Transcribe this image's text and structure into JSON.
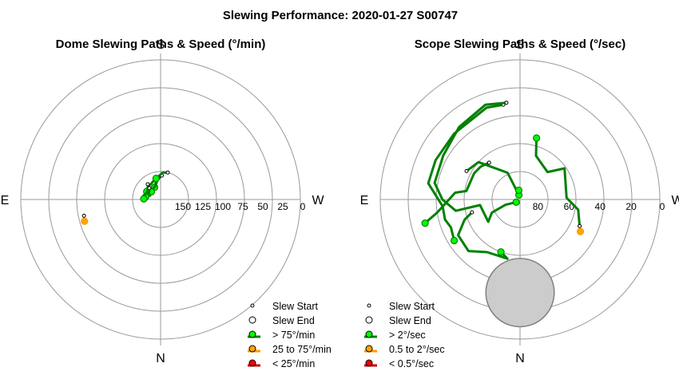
{
  "title": "Slewing Performance: 2020-01-27 S00747",
  "colors": {
    "fast": "#008000",
    "fast_marker": "#00ff00",
    "medium": "#ff9900",
    "medium_marker": "#ffa500",
    "slow": "#cc0000",
    "slow_marker": "#ff0000",
    "grid": "#999999",
    "zenith_fill": "#cccccc",
    "zenith_edge": "#808080"
  },
  "chart_data": [
    {
      "type": "polar",
      "title": "Dome Slewing Paths & Speed (°/min)",
      "direction_labels": {
        "top": "S",
        "bottom": "N",
        "left": "E",
        "right": "W"
      },
      "radial_range": [
        0,
        175
      ],
      "radial_ticks": [
        150,
        125,
        100,
        75,
        50,
        25,
        0
      ],
      "radial_tick_labels": [
        "150",
        "125",
        "100",
        "75",
        "50",
        "25",
        "0"
      ],
      "grid": true,
      "legend_position": "bottom-right",
      "legend": [
        {
          "label": "Slew Start",
          "kind": "start"
        },
        {
          "label": "Slew End",
          "kind": "end"
        },
        {
          "label": "> 75°/min",
          "kind": "fast"
        },
        {
          "label": "25 to 75°/min",
          "kind": "medium"
        },
        {
          "label": "< 25°/min",
          "kind": "slow"
        }
      ],
      "slews": [
        {
          "class": "fast",
          "path": [
            [
              3,
              145
            ],
            [
              -12,
              150
            ],
            [
              -26,
              158
            ]
          ]
        },
        {
          "class": "fast",
          "path": [
            [
              -6,
              148
            ],
            [
              -22,
              157
            ],
            [
              -42,
              159
            ],
            [
              -50,
              160
            ]
          ]
        },
        {
          "class": "fast",
          "path": [
            [
              -10,
              147
            ],
            [
              -25,
              151
            ],
            [
              -48,
              153
            ],
            [
              -60,
              155
            ]
          ]
        },
        {
          "class": "fast",
          "path": [
            [
              15,
              140
            ],
            [
              5,
              141
            ],
            [
              -12,
              148
            ]
          ]
        },
        {
          "class": "fast",
          "path": [
            [
              -40,
              150
            ],
            [
              -60,
              157
            ],
            [
              -70,
              161
            ],
            [
              -80,
              156
            ]
          ]
        },
        {
          "class": "fast",
          "path": [
            [
              -45,
              155
            ],
            [
              -70,
              155
            ],
            [
              -88,
              154
            ]
          ]
        },
        {
          "class": "medium",
          "path": [
            [
              -102,
              77
            ],
            [
              -106,
              76
            ]
          ]
        }
      ]
    },
    {
      "type": "polar",
      "title": "Scope Slewing Paths & Speed (°/sec)",
      "direction_labels": {
        "top": "S",
        "bottom": "N",
        "left": "E",
        "right": "W"
      },
      "radial_range": [
        0,
        90
      ],
      "radial_ticks": [
        80,
        60,
        40,
        20,
        0
      ],
      "radial_tick_labels": [
        "80",
        "60",
        "40",
        "20",
        "0"
      ],
      "grid": true,
      "legend_position": "bottom-left",
      "zenith_exclusion": {
        "center_azimuth": 180,
        "center_altitude": 60,
        "radius_degrees": 22
      },
      "legend": [
        {
          "label": "Slew Start",
          "kind": "start"
        },
        {
          "label": "Slew End",
          "kind": "end"
        },
        {
          "label": "> 2°/sec",
          "kind": "fast"
        },
        {
          "label": "0.5 to 2°/sec",
          "kind": "medium"
        },
        {
          "label": "< 0.5°/sec",
          "kind": "slow"
        }
      ],
      "slews": [
        {
          "class": "fast",
          "path": [
            [
              114,
              48
            ],
            [
              100,
              52
            ],
            [
              88,
              60
            ],
            [
              55,
              55
            ],
            [
              45,
              65
            ],
            [
              20,
              60
            ],
            [
              15,
              49
            ]
          ]
        },
        {
          "class": "fast",
          "path": [
            [
              -10,
              28
            ],
            [
              -20,
              27
            ],
            [
              -45,
              30
            ],
            [
              -65,
              30
            ],
            [
              -80,
              30
            ],
            [
              -95,
              40
            ],
            [
              -105,
              40
            ],
            [
              -112,
              42
            ],
            [
              -122,
              40
            ]
          ]
        },
        {
          "class": "fast",
          "path": [
            [
              -8,
              27
            ],
            [
              -20,
              25
            ],
            [
              -40,
              29
            ],
            [
              -60,
              33
            ],
            [
              -79,
              34
            ],
            [
              -90,
              40
            ],
            [
              -100,
              48
            ],
            [
              -98,
              64
            ],
            [
              -125,
              65
            ],
            [
              -115,
              70
            ],
            [
              -110,
              80
            ],
            [
              -125,
              87
            ]
          ]
        },
        {
          "class": "fast",
          "path": [
            [
              -62,
              51
            ],
            [
              -48,
              54
            ],
            [
              -25,
              71
            ],
            [
              -14,
              87
            ]
          ]
        },
        {
          "class": "fast",
          "path": [
            [
              -40,
              59
            ],
            [
              -50,
              57
            ],
            [
              -60,
              56
            ],
            [
              -81,
              55
            ],
            [
              -84,
              48
            ],
            [
              -99,
              36
            ],
            [
              -104,
              27
            ]
          ]
        },
        {
          "class": "fast",
          "path": [
            [
              -105,
              58
            ],
            [
              -110,
              52
            ],
            [
              -120,
              44
            ],
            [
              -135,
              43
            ],
            [
              -148,
              50
            ],
            [
              -168,
              51
            ],
            [
              -160,
              54
            ]
          ]
        },
        {
          "class": "fast",
          "path": [
            [
              -15,
              85
            ],
            [
              -8,
              84
            ]
          ]
        },
        {
          "class": "medium",
          "path": [
            [
              114,
              48
            ],
            [
              118,
              46
            ]
          ]
        }
      ]
    }
  ]
}
